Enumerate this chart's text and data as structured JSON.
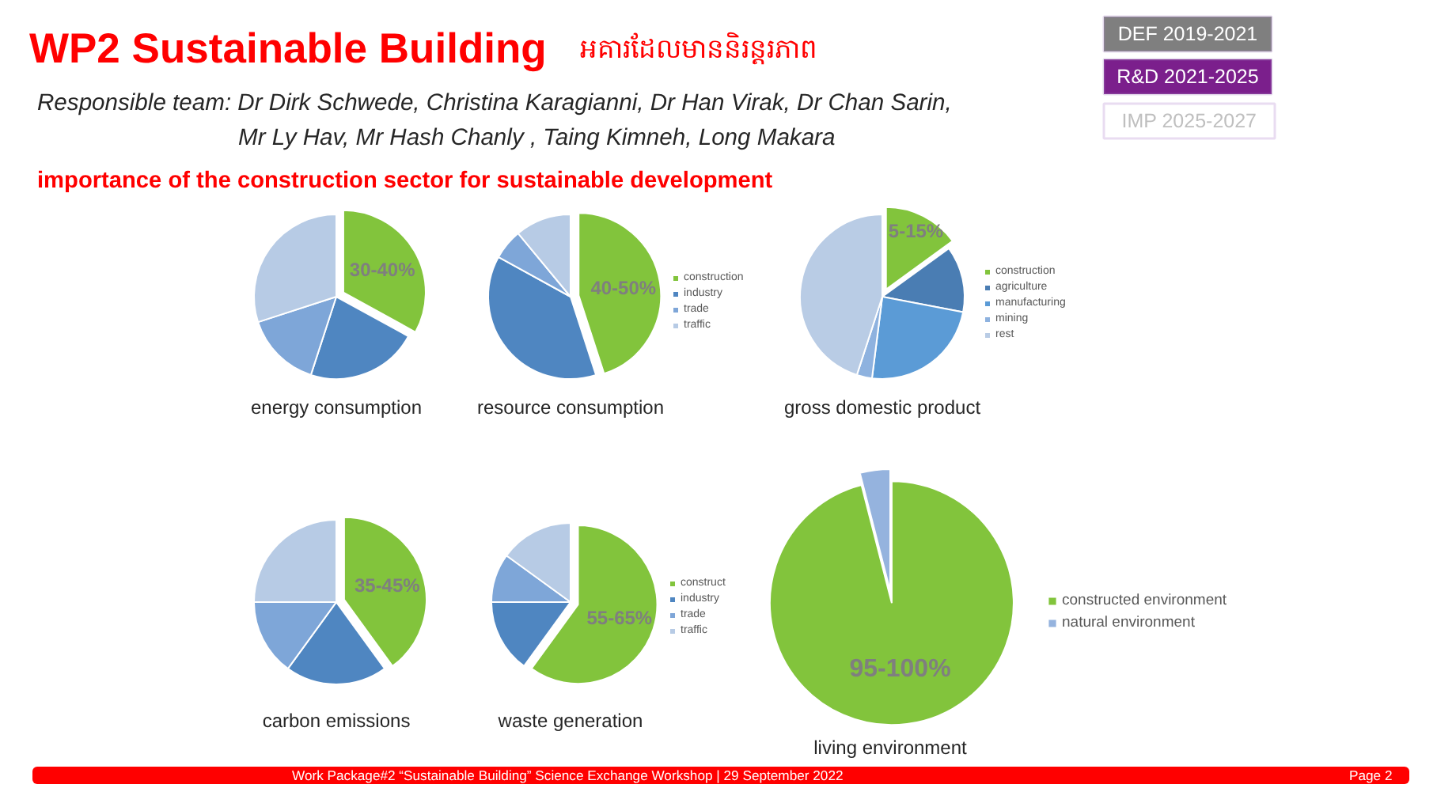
{
  "chart_data": [
    {
      "type": "other",
      "title": "WP2 Sustainable Building",
      "subtitle": "អគារដែលមាននិរន្តរភាព",
      "annotations": [
        "Responsible team: Dr Dirk Schwede, Christina Karagianni, Dr Han Virak, Dr Chan Sarin,",
        "Mr Ly Hav, Mr Hash Chanly , Taing Kimneh, Long Makara",
        "importance of the construction sector for sustainable development",
        "DEF 2019-2021",
        "R&D 2021-2025",
        "IMP 2025-2027",
        "Work Package#2 “Sustainable Building” Science Exchange Workshop | 29 September 2022",
        "Page 2"
      ]
    },
    {
      "type": "pie",
      "title": "energy consumption",
      "categories": [
        null,
        null,
        null,
        null
      ],
      "values": [
        33,
        22,
        15,
        30
      ],
      "colors": [
        "#82c43c",
        "#4f86c1",
        "#7ea6d8",
        "#b7cbe5"
      ],
      "annotations": [
        "30-40%"
      ]
    },
    {
      "type": "pie",
      "title": "resource consumption",
      "categories": [
        "construction",
        "industry",
        "trade",
        "traffic"
      ],
      "values": [
        45,
        38,
        6,
        11
      ],
      "colors": [
        "#82c43c",
        "#4f86c1",
        "#7ea6d8",
        "#b7cbe5"
      ],
      "annotations": [
        "40-50%"
      ],
      "legend": "right"
    },
    {
      "type": "pie",
      "title": "gross domestic product",
      "categories": [
        "construction",
        "agriculture",
        "manufacturing",
        "mining",
        "rest"
      ],
      "values": [
        15,
        13,
        24,
        3,
        45
      ],
      "colors": [
        "#82c43c",
        "#4a7db3",
        "#5b9bd6",
        "#8eb2df",
        "#b9cce5"
      ],
      "annotations": [
        "5-15%"
      ],
      "legend": "right"
    },
    {
      "type": "pie",
      "title": "carbon emissions",
      "categories": [
        null,
        null,
        null,
        null
      ],
      "values": [
        40,
        20,
        15,
        25
      ],
      "colors": [
        "#82c43c",
        "#4f86c1",
        "#7ea6d8",
        "#b7cbe5"
      ],
      "annotations": [
        "35-45%"
      ]
    },
    {
      "type": "pie",
      "title": "waste generation",
      "categories": [
        "construct",
        "industry",
        "trade",
        "traffic"
      ],
      "values": [
        60,
        15,
        10,
        15
      ],
      "colors": [
        "#82c43c",
        "#4f86c1",
        "#7ea6d8",
        "#b7cbe5"
      ],
      "annotations": [
        "55-65%"
      ],
      "legend": "right"
    },
    {
      "type": "pie",
      "title": "living environment",
      "categories": [
        "constructed environment",
        "natural environment"
      ],
      "values": [
        96,
        4
      ],
      "colors": [
        "#82c43c",
        "#95b3de"
      ],
      "annotations": [
        "95-100%"
      ],
      "legend": "right"
    }
  ]
}
